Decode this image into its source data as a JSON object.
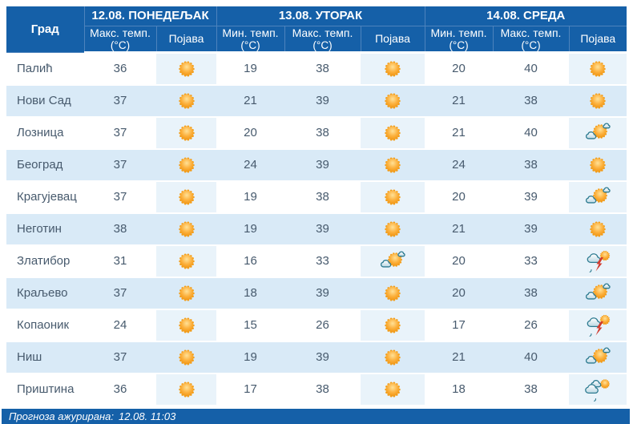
{
  "table": {
    "days": [
      {
        "label": "12.08. ПОНЕДЕЉАК"
      },
      {
        "label": "13.08. УТОРАК"
      },
      {
        "label": "14.08. СРЕДА"
      }
    ],
    "columns": [
      {
        "main": "Град",
        "sub": ""
      },
      {
        "main": "Макс. темп.",
        "sub": "(°C)"
      },
      {
        "main": "Појава",
        "sub": ""
      },
      {
        "main": "Мин. темп.",
        "sub": "(°C)"
      },
      {
        "main": "Макс. темп.",
        "sub": "(°C)"
      },
      {
        "main": "Појава",
        "sub": ""
      },
      {
        "main": "Мин. темп.",
        "sub": "(°C)"
      },
      {
        "main": "Макс. темп.",
        "sub": "(°C)"
      },
      {
        "main": "Појава",
        "sub": ""
      }
    ],
    "rows": [
      {
        "city": "Палић",
        "monday": {
          "max": "36",
          "icon": "sunny"
        },
        "tuesday": {
          "min": "19",
          "max": "38",
          "icon": "sunny"
        },
        "wednesday": {
          "min": "20",
          "max": "40",
          "icon": "sunny"
        }
      },
      {
        "city": "Нови Сад",
        "monday": {
          "max": "37",
          "icon": "sunny"
        },
        "tuesday": {
          "min": "21",
          "max": "39",
          "icon": "sunny"
        },
        "wednesday": {
          "min": "21",
          "max": "38",
          "icon": "sunny"
        }
      },
      {
        "city": "Лозница",
        "monday": {
          "max": "37",
          "icon": "sunny"
        },
        "tuesday": {
          "min": "20",
          "max": "38",
          "icon": "sunny"
        },
        "wednesday": {
          "min": "21",
          "max": "40",
          "icon": "partly-cloudy"
        }
      },
      {
        "city": "Београд",
        "monday": {
          "max": "37",
          "icon": "sunny"
        },
        "tuesday": {
          "min": "24",
          "max": "39",
          "icon": "sunny"
        },
        "wednesday": {
          "min": "24",
          "max": "38",
          "icon": "sunny"
        }
      },
      {
        "city": "Крагујевац",
        "monday": {
          "max": "37",
          "icon": "sunny"
        },
        "tuesday": {
          "min": "19",
          "max": "38",
          "icon": "sunny"
        },
        "wednesday": {
          "min": "20",
          "max": "39",
          "icon": "partly-cloudy"
        }
      },
      {
        "city": "Неготин",
        "monday": {
          "max": "38",
          "icon": "sunny"
        },
        "tuesday": {
          "min": "19",
          "max": "39",
          "icon": "sunny"
        },
        "wednesday": {
          "min": "21",
          "max": "39",
          "icon": "sunny"
        }
      },
      {
        "city": "Златибор",
        "monday": {
          "max": "31",
          "icon": "sunny"
        },
        "tuesday": {
          "min": "16",
          "max": "33",
          "icon": "partly-cloudy"
        },
        "wednesday": {
          "min": "20",
          "max": "33",
          "icon": "thunderstorm"
        }
      },
      {
        "city": "Краљево",
        "monday": {
          "max": "37",
          "icon": "sunny"
        },
        "tuesday": {
          "min": "18",
          "max": "39",
          "icon": "sunny"
        },
        "wednesday": {
          "min": "20",
          "max": "38",
          "icon": "partly-cloudy"
        }
      },
      {
        "city": "Копаоник",
        "monday": {
          "max": "24",
          "icon": "sunny"
        },
        "tuesday": {
          "min": "15",
          "max": "26",
          "icon": "sunny"
        },
        "wednesday": {
          "min": "17",
          "max": "26",
          "icon": "thunderstorm"
        }
      },
      {
        "city": "Ниш",
        "monday": {
          "max": "37",
          "icon": "sunny"
        },
        "tuesday": {
          "min": "19",
          "max": "39",
          "icon": "sunny"
        },
        "wednesday": {
          "min": "21",
          "max": "40",
          "icon": "partly-cloudy"
        }
      },
      {
        "city": "Приштина",
        "monday": {
          "max": "36",
          "icon": "sunny"
        },
        "tuesday": {
          "min": "17",
          "max": "38",
          "icon": "sunny"
        },
        "wednesday": {
          "min": "18",
          "max": "38",
          "icon": "mostly-cloudy-drizzle"
        }
      }
    ]
  },
  "footer": {
    "label": "Прогноза ажурирана:",
    "value": "12.08. 11:03"
  },
  "colors": {
    "header_bg": "#1560a8",
    "row_alt_bg": "#d9eaf7",
    "icon_cell_bg": "#e9f3fa",
    "body_text": "#475a6d",
    "sun": "#f6a01d",
    "cloud_outline": "#2c7a90",
    "lightning": "#d23b2f"
  }
}
